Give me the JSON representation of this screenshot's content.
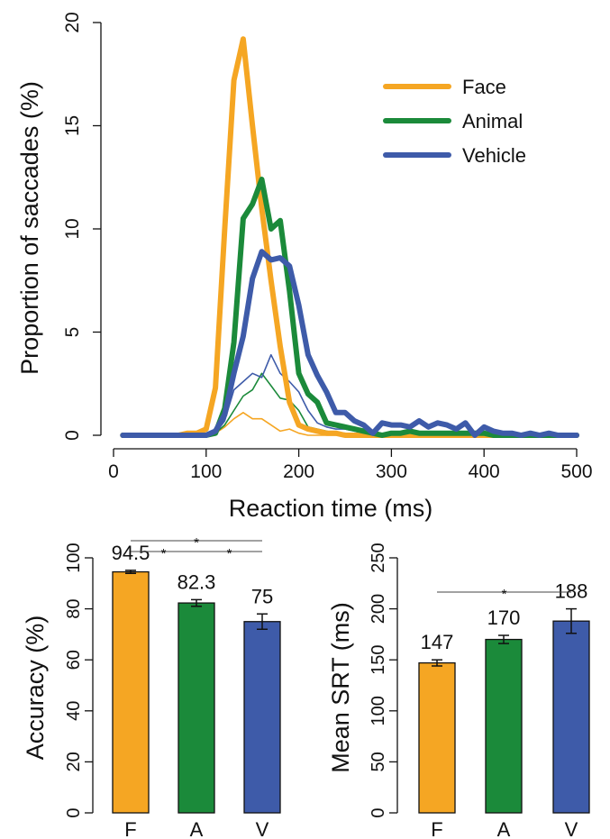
{
  "colors": {
    "face": "#F5A623",
    "animal": "#1B8A3A",
    "vehicle": "#3E5BA9",
    "axis": "#111111"
  },
  "chart_data": [
    {
      "type": "line",
      "xlabel": "Reaction time (ms)",
      "ylabel": "Proportion of saccades (%)",
      "xlim": [
        0,
        500
      ],
      "ylim": [
        0,
        20
      ],
      "xticks": [
        "0",
        "100",
        "200",
        "300",
        "400",
        "500"
      ],
      "yticks": [
        "0",
        "5",
        "10",
        "15",
        "20"
      ],
      "legend": {
        "position": "top-right",
        "entries": [
          "Face",
          "Animal",
          "Vehicle"
        ]
      },
      "grid": false,
      "series": [
        {
          "name": "Face",
          "style": "thick",
          "color": "#F5A623",
          "x": [
            10,
            20,
            30,
            40,
            50,
            60,
            70,
            80,
            90,
            100,
            110,
            120,
            130,
            140,
            150,
            160,
            170,
            180,
            190,
            200,
            210,
            220,
            230,
            240,
            250,
            260,
            270,
            280,
            290,
            300,
            310,
            320,
            330,
            340,
            350,
            360,
            370,
            380,
            390,
            400,
            410,
            420,
            430,
            440,
            450,
            460,
            470,
            480,
            490,
            500
          ],
          "y": [
            0,
            0,
            0,
            0,
            0,
            0,
            0,
            0.1,
            0.1,
            0.3,
            2.3,
            10.0,
            17.2,
            19.2,
            15.0,
            11.0,
            7.5,
            4.3,
            1.6,
            0.5,
            0.3,
            0.2,
            0.1,
            0.1,
            0,
            0,
            0,
            0,
            0,
            0,
            0,
            0,
            0,
            0,
            0,
            0,
            0,
            0,
            0,
            0,
            0,
            0,
            0,
            0,
            0,
            0,
            0,
            0,
            0,
            0
          ]
        },
        {
          "name": "Animal",
          "style": "thick",
          "color": "#1B8A3A",
          "x": [
            10,
            20,
            30,
            40,
            50,
            60,
            70,
            80,
            90,
            100,
            110,
            120,
            130,
            140,
            150,
            160,
            170,
            180,
            190,
            200,
            210,
            220,
            230,
            240,
            250,
            260,
            270,
            280,
            290,
            300,
            310,
            320,
            330,
            340,
            350,
            360,
            370,
            380,
            390,
            400,
            410,
            420,
            430,
            440,
            450,
            460,
            470,
            480,
            490,
            500
          ],
          "y": [
            0,
            0,
            0,
            0,
            0,
            0,
            0,
            0,
            0,
            0,
            0.1,
            1.3,
            4.5,
            10.5,
            11.2,
            12.4,
            10.0,
            10.4,
            7.0,
            3.0,
            2.0,
            1.6,
            0.6,
            0.5,
            0.4,
            0.3,
            0.2,
            0.1,
            0,
            0.1,
            0.1,
            0.2,
            0.1,
            0.1,
            0.1,
            0.1,
            0.1,
            0.1,
            0.1,
            0.1,
            0,
            0,
            0,
            0,
            0,
            0,
            0,
            0,
            0,
            0
          ]
        },
        {
          "name": "Vehicle",
          "style": "thick",
          "color": "#3E5BA9",
          "x": [
            10,
            20,
            30,
            40,
            50,
            60,
            70,
            80,
            90,
            100,
            110,
            120,
            130,
            140,
            150,
            160,
            170,
            180,
            190,
            200,
            210,
            220,
            230,
            240,
            250,
            260,
            270,
            280,
            290,
            300,
            310,
            320,
            330,
            340,
            350,
            360,
            370,
            380,
            390,
            400,
            410,
            420,
            430,
            440,
            450,
            460,
            470,
            480,
            490,
            500
          ],
          "y": [
            0,
            0,
            0,
            0,
            0,
            0,
            0,
            0,
            0,
            0,
            0.2,
            1.0,
            3.0,
            4.8,
            7.6,
            8.9,
            8.5,
            8.6,
            8.2,
            6.3,
            3.9,
            2.9,
            2.1,
            1.1,
            1.1,
            0.7,
            0.5,
            0.1,
            0.6,
            0.5,
            0.5,
            0.4,
            0.7,
            0.4,
            0.6,
            0.5,
            0.3,
            0.6,
            0,
            0.4,
            0.2,
            0.1,
            0.1,
            0,
            0.1,
            0,
            0.1,
            0,
            0,
            0
          ]
        },
        {
          "name": "Face",
          "style": "thin",
          "color": "#F5A623",
          "x": [
            10,
            20,
            30,
            40,
            50,
            60,
            70,
            80,
            90,
            100,
            110,
            120,
            130,
            140,
            150,
            160,
            170,
            180,
            190,
            200,
            210,
            220,
            230,
            240,
            250,
            260,
            270,
            280,
            290,
            300
          ],
          "y": [
            0,
            0,
            0,
            0,
            0,
            0,
            0,
            0,
            0,
            0,
            0.1,
            0.4,
            0.8,
            1.1,
            0.8,
            0.8,
            0.5,
            0.2,
            0.3,
            0.1,
            0,
            0,
            0,
            0,
            0,
            0,
            0,
            0,
            0,
            0
          ]
        },
        {
          "name": "Animal",
          "style": "thin",
          "color": "#1B8A3A",
          "x": [
            10,
            20,
            30,
            40,
            50,
            60,
            70,
            80,
            90,
            100,
            110,
            120,
            130,
            140,
            150,
            160,
            170,
            180,
            190,
            200,
            210,
            220,
            230,
            240,
            250,
            260,
            270,
            280,
            290,
            300
          ],
          "y": [
            0,
            0,
            0,
            0,
            0,
            0,
            0,
            0,
            0,
            0,
            0.1,
            0.5,
            1.2,
            1.9,
            2.2,
            3.0,
            2.4,
            1.8,
            1.7,
            1.2,
            0.4,
            0.3,
            0.2,
            0.1,
            0.1,
            0,
            0,
            0,
            0,
            0
          ]
        },
        {
          "name": "Vehicle",
          "style": "thin",
          "color": "#3E5BA9",
          "x": [
            10,
            20,
            30,
            40,
            50,
            60,
            70,
            80,
            90,
            100,
            110,
            120,
            130,
            140,
            150,
            160,
            170,
            180,
            190,
            200,
            210,
            220,
            230,
            240,
            250,
            260,
            270,
            280,
            290,
            300
          ],
          "y": [
            0,
            0,
            0,
            0,
            0,
            0,
            0,
            0,
            0,
            0,
            0.1,
            0.7,
            2.2,
            2.6,
            3.0,
            2.8,
            3.9,
            3.0,
            2.6,
            2.1,
            1.2,
            0.6,
            0.4,
            0.3,
            0.3,
            0.2,
            0.1,
            0.1,
            0,
            0
          ]
        }
      ]
    },
    {
      "type": "bar",
      "ylabel": "Accuracy (%)",
      "ylim": [
        0,
        100
      ],
      "yticks": [
        "0",
        "20",
        "40",
        "60",
        "80",
        "100"
      ],
      "categories": [
        "F",
        "A",
        "V"
      ],
      "values": [
        94.5,
        82.3,
        75
      ],
      "value_labels": [
        "94.5",
        "82.3",
        "75"
      ],
      "errors": [
        0.6,
        1.3,
        3.0
      ],
      "colors": [
        "#F5A623",
        "#1B8A3A",
        "#3E5BA9"
      ],
      "significance": [
        {
          "from": 0,
          "to": 2,
          "label": "*",
          "level": 2
        },
        {
          "from": 0,
          "to": 1,
          "label": "*",
          "level": 1
        },
        {
          "from": 1,
          "to": 2,
          "label": "*",
          "level": 1
        }
      ]
    },
    {
      "type": "bar",
      "ylabel": "Mean SRT (ms)",
      "ylim": [
        0,
        250
      ],
      "yticks": [
        "0",
        "50",
        "100",
        "150",
        "200",
        "250"
      ],
      "categories": [
        "F",
        "A",
        "V"
      ],
      "values": [
        147,
        170,
        188
      ],
      "value_labels": [
        "147",
        "170",
        "188"
      ],
      "errors": [
        3,
        4,
        12
      ],
      "colors": [
        "#F5A623",
        "#1B8A3A",
        "#3E5BA9"
      ],
      "significance": [
        {
          "from": 0,
          "to": 2,
          "label": "*",
          "level": 1
        }
      ]
    }
  ]
}
